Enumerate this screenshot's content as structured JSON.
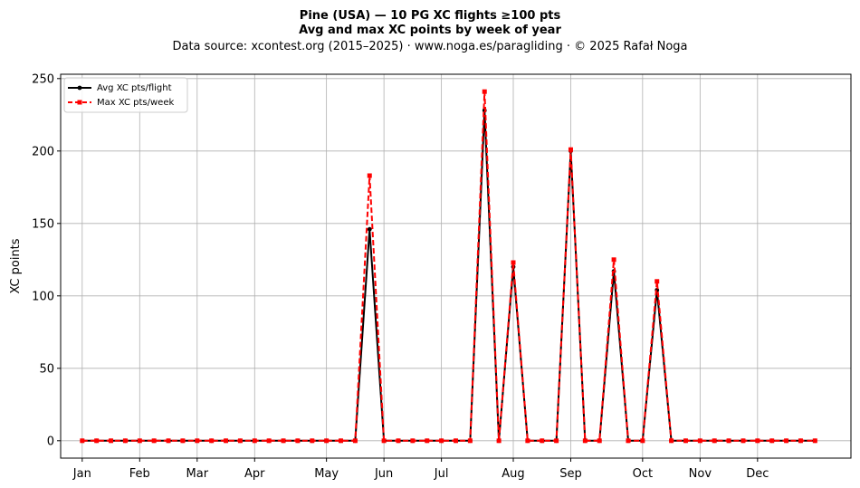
{
  "chart_data": {
    "type": "line",
    "title_line1": "Pine (USA)  —  10 PG XC flights ≥100 pts",
    "title_line2": "Avg and max XC points by week of year",
    "subtitle": "Data source: xcontest.org (2015–2025)  ·  www.noga.es/paragliding  ·  © 2025 Rafał Noga",
    "xlabel": "",
    "ylabel": "XC points",
    "ylim": [
      -12,
      253
    ],
    "xlim": [
      -1.5,
      53.5
    ],
    "yticks": [
      0,
      50,
      100,
      150,
      200,
      250
    ],
    "month_labels": [
      "Jan",
      "Feb",
      "Mar",
      "Apr",
      "May",
      "Jun",
      "Jul",
      "Aug",
      "Sep",
      "Oct",
      "Nov",
      "Dec"
    ],
    "month_positions": [
      0,
      4,
      8,
      12,
      17,
      21,
      25,
      30,
      34,
      39,
      43,
      47
    ],
    "grid": true,
    "legend_position": "top-left",
    "x": [
      0,
      1,
      2,
      3,
      4,
      5,
      6,
      7,
      8,
      9,
      10,
      11,
      12,
      13,
      14,
      15,
      16,
      17,
      18,
      19,
      20,
      21,
      22,
      23,
      24,
      25,
      26,
      27,
      28,
      29,
      30,
      31,
      32,
      33,
      34,
      35,
      36,
      37,
      38,
      39,
      40,
      41,
      42,
      43,
      44,
      45,
      46,
      47,
      48,
      49,
      50,
      51
    ],
    "series": [
      {
        "name": "Avg XC pts/flight",
        "color": "#000000",
        "style": "solid",
        "marker": "circle",
        "values": [
          0,
          0,
          0,
          0,
          0,
          0,
          0,
          0,
          0,
          0,
          0,
          0,
          0,
          0,
          0,
          0,
          0,
          0,
          0,
          0,
          146,
          0,
          0,
          0,
          0,
          0,
          0,
          0,
          228,
          0,
          120,
          0,
          0,
          0,
          200,
          0,
          0,
          117,
          0,
          0,
          104,
          0,
          0,
          0,
          0,
          0,
          0,
          0,
          0,
          0,
          0,
          0
        ]
      },
      {
        "name": "Max XC pts/week",
        "color": "#ff0000",
        "style": "dashed",
        "marker": "square",
        "values": [
          0,
          0,
          0,
          0,
          0,
          0,
          0,
          0,
          0,
          0,
          0,
          0,
          0,
          0,
          0,
          0,
          0,
          0,
          0,
          0,
          183,
          0,
          0,
          0,
          0,
          0,
          0,
          0,
          241,
          0,
          123,
          0,
          0,
          0,
          201,
          0,
          0,
          125,
          0,
          0,
          110,
          0,
          0,
          0,
          0,
          0,
          0,
          0,
          0,
          0,
          0,
          0
        ]
      }
    ]
  }
}
